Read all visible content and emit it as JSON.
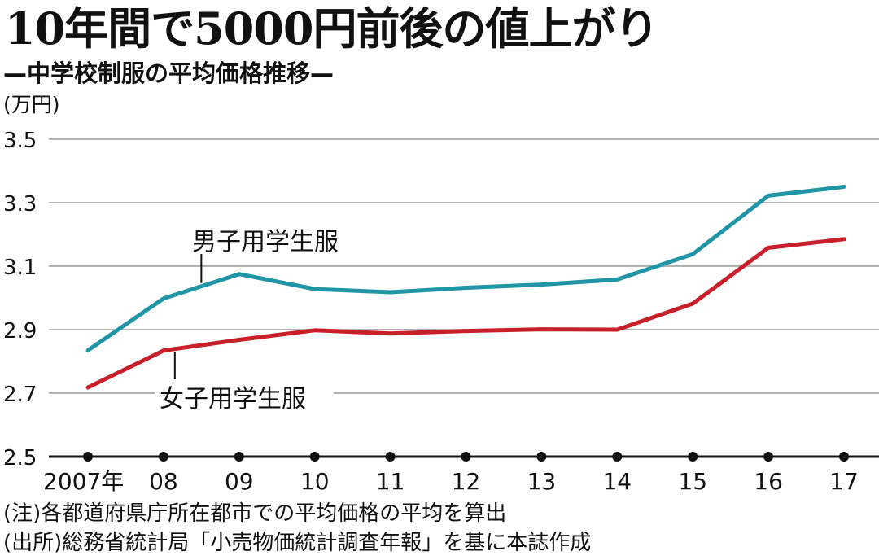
{
  "header": {
    "title": "10年間で5000円前後の値上がり",
    "subtitle": "—中学校制服の平均価格推移—",
    "unit": "(万円)"
  },
  "footer": {
    "note": "(注)各都道府県庁所在都市での平均価格の平均を算出",
    "source": "(出所)総務省統計局「小売物価統計調査年報」を基に本誌作成"
  },
  "colors": {
    "boys": "#1f95a6",
    "girls": "#c8202a",
    "grid": "#999999",
    "axis": "#111111"
  },
  "chart_data": {
    "type": "line",
    "title": "10年間で5000円前後の値上がり",
    "subtitle": "—中学校制服の平均価格推移—",
    "ylabel": "(万円)",
    "ylim": [
      2.5,
      3.5
    ],
    "yticks": [
      "2.5",
      "2.7",
      "2.9",
      "3.1",
      "3.3",
      "3.5"
    ],
    "x": [
      2007,
      2008,
      2009,
      2010,
      2011,
      2012,
      2013,
      2014,
      2015,
      2016,
      2017
    ],
    "xtick_labels": [
      "2007年",
      "08",
      "09",
      "10",
      "11",
      "12",
      "13",
      "14",
      "15",
      "16",
      "17"
    ],
    "grid": true,
    "series": [
      {
        "name": "男子用学生服",
        "values": [
          2.835,
          2.998,
          3.075,
          3.028,
          3.018,
          3.032,
          3.042,
          3.058,
          3.138,
          3.322,
          3.35
        ]
      },
      {
        "name": "女子用学生服",
        "values": [
          2.718,
          2.834,
          2.868,
          2.898,
          2.888,
          2.896,
          2.901,
          2.9,
          2.982,
          3.158,
          3.185
        ]
      }
    ]
  }
}
